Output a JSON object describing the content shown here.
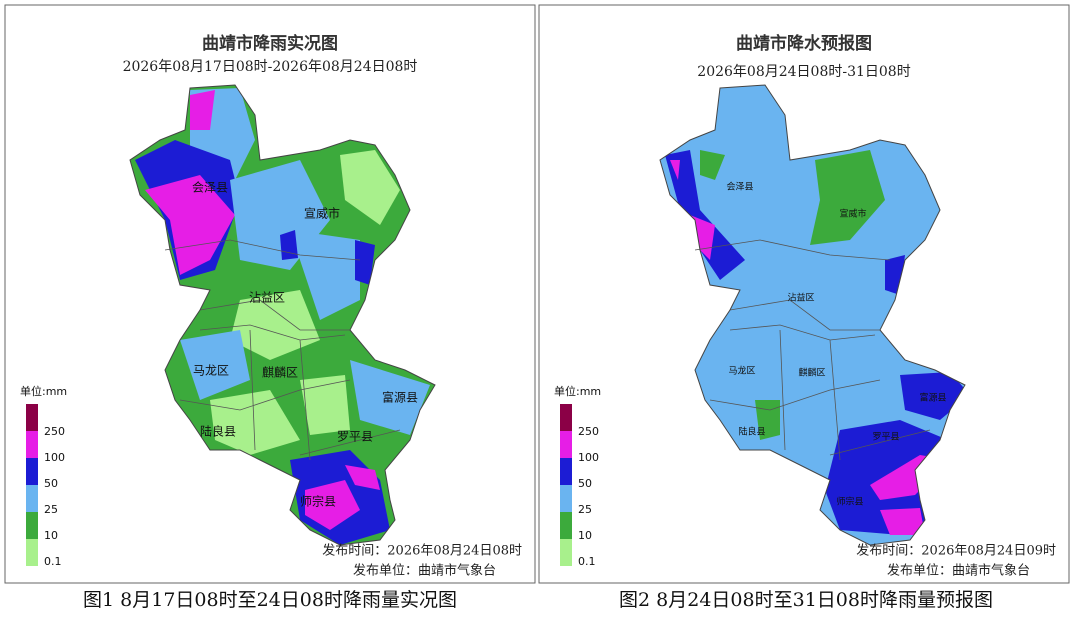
{
  "maps": [
    {
      "title": "曲靖市降雨实况图",
      "subtitle": "2026年08月17日08时-2026年08月24日08时",
      "counties": [
        "会泽县",
        "宣威市",
        "沾益区",
        "马龙区",
        "麒麟区",
        "富源县",
        "陆良县",
        "罗平县",
        "师宗县"
      ],
      "legend": {
        "unit": "单位:mm",
        "labels": [
          "250",
          "100",
          "50",
          "25",
          "10",
          "0.1"
        ]
      },
      "publish_time": "发布时间：2026年08月24日08时",
      "publisher": "发布单位：曲靖市气象台"
    },
    {
      "title": "曲靖市降水预报图",
      "subtitle": "2026年08月24日08时-31日08时",
      "counties": [
        "会泽县",
        "宣威市",
        "沾益区",
        "马龙区",
        "麒麟区",
        "富源县",
        "陆良县",
        "罗平县",
        "师宗县"
      ],
      "legend": {
        "unit": "单位:mm",
        "labels": [
          "250",
          "100",
          "50",
          "25",
          "10",
          "0.1"
        ]
      },
      "publish_time": "发布时间：2026年08月24日09时",
      "publisher": "发布单位：曲靖市气象台"
    }
  ],
  "captions": [
    "图1 8月17日08时至24日08时降雨量实况图",
    "图2 8月24日08时至31日08时降雨量预报图"
  ]
}
